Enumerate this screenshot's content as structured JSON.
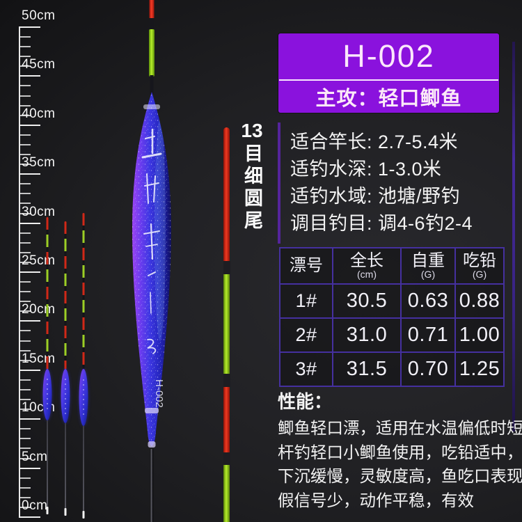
{
  "ruler": {
    "unit": "cm",
    "major_labels": [
      "50cm",
      "45cm",
      "40cm",
      "35cm",
      "30cm",
      "25cm",
      "20cm",
      "15cm",
      "10cm",
      "5cm",
      "0cm"
    ],
    "minors_per_interval": 4
  },
  "tail_note": {
    "number": "13",
    "chars": "目细圆尾"
  },
  "big_float": {
    "body_text": "H-002"
  },
  "header": {
    "model": "H-002",
    "target": "主攻：轻口鲫鱼",
    "bg_color": "#8a12dd"
  },
  "specs": {
    "lines": [
      "适合竿长: 2.7-5.4米",
      "适钓水深: 1-3.0米",
      "适钓水域: 池塘/野钓",
      "调目钓目: 调4-6钓2-4"
    ]
  },
  "spec_table": {
    "columns": [
      {
        "label": "漂号",
        "unit": ""
      },
      {
        "label": "全长",
        "unit": "(cm)"
      },
      {
        "label": "自重",
        "unit": "(G)"
      },
      {
        "label": "吃铅",
        "unit": "(G)"
      }
    ],
    "rows": [
      [
        "1#",
        "30.5",
        "0.63",
        "0.88"
      ],
      [
        "2#",
        "31.0",
        "0.71",
        "1.00"
      ],
      [
        "3#",
        "31.5",
        "0.70",
        "1.25"
      ]
    ],
    "border_color": "#45309f"
  },
  "performance": {
    "title": "性能：",
    "lines": [
      "鲫鱼轻口漂，适用在水温偏低时短",
      "杆钓轻口小鲫鱼使用，吃铅适中，",
      "下沉缓慢，灵敏度高，鱼吃口表现",
      "假信号少，动作平稳，有效"
    ]
  },
  "colors": {
    "tail_red": "#e0261b",
    "tail_green": "#a6e619",
    "body_blue": "#3d37e2",
    "body_purple": "#9b44f2"
  }
}
